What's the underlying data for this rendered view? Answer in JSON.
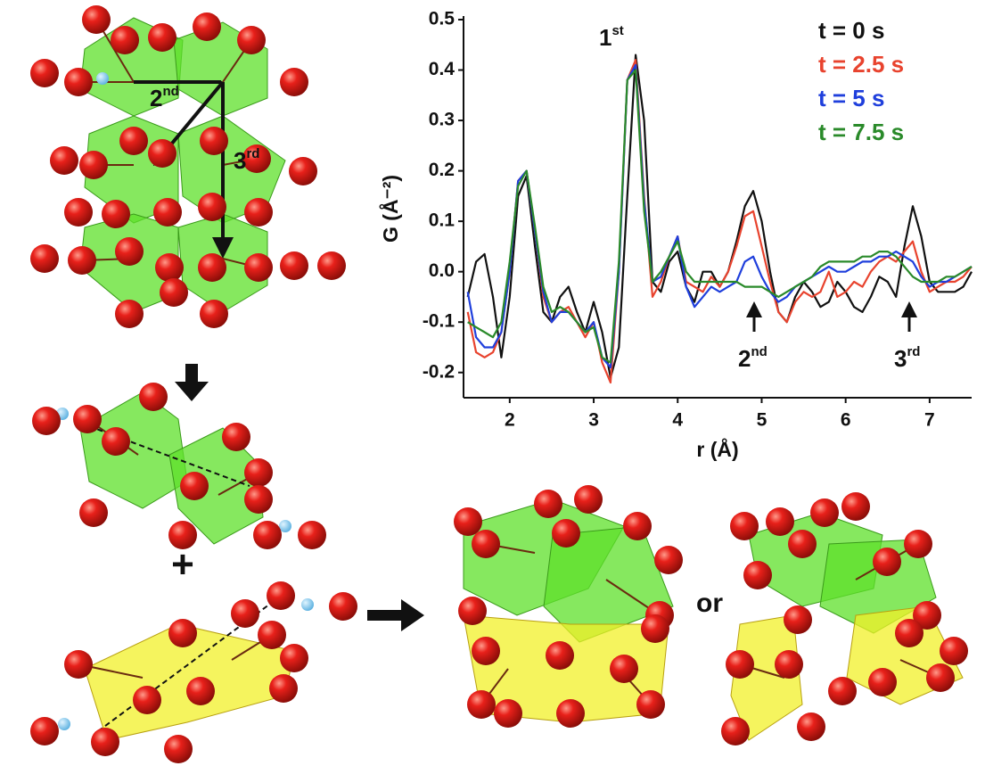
{
  "chart_data": {
    "type": "line",
    "x_label": "r (Å)",
    "y_label": "G (Å⁻²)",
    "xlim": [
      1.45,
      7.5
    ],
    "xticks": [
      2,
      3,
      4,
      5,
      6,
      7
    ],
    "ylim": [
      -0.25,
      0.5
    ],
    "yticks": [
      -0.2,
      -0.1,
      {
        "value": 0,
        "label": "0.0"
      },
      0.1,
      0.2,
      0.3,
      0.4,
      0.5
    ],
    "legend": "upper right",
    "x": [
      1.5,
      1.6,
      1.7,
      1.8,
      1.9,
      2.0,
      2.1,
      2.2,
      2.3,
      2.4,
      2.5,
      2.6,
      2.7,
      2.8,
      2.9,
      3.0,
      3.1,
      3.2,
      3.3,
      3.4,
      3.5,
      3.6,
      3.7,
      3.8,
      3.9,
      4.0,
      4.1,
      4.2,
      4.3,
      4.4,
      4.5,
      4.6,
      4.7,
      4.8,
      4.9,
      5.0,
      5.1,
      5.2,
      5.3,
      5.4,
      5.5,
      5.6,
      5.7,
      5.8,
      5.9,
      6.0,
      6.1,
      6.2,
      6.3,
      6.4,
      6.5,
      6.6,
      6.7,
      6.8,
      6.9,
      7.0,
      7.1,
      7.2,
      7.3,
      7.4,
      7.5
    ],
    "series": [
      {
        "name": "t = 0 s",
        "color": "#111111",
        "values": [
          -0.05,
          0.02,
          0.035,
          -0.05,
          -0.17,
          -0.05,
          0.15,
          0.19,
          0.05,
          -0.08,
          -0.1,
          -0.05,
          -0.03,
          -0.08,
          -0.12,
          -0.06,
          -0.12,
          -0.21,
          -0.15,
          0.15,
          0.43,
          0.3,
          -0.02,
          -0.04,
          0.02,
          0.04,
          -0.03,
          -0.06,
          0.0,
          0.0,
          -0.03,
          0.0,
          0.06,
          0.13,
          0.16,
          0.1,
          0.0,
          -0.08,
          -0.1,
          -0.05,
          -0.02,
          -0.04,
          -0.07,
          -0.06,
          -0.02,
          -0.04,
          -0.07,
          -0.08,
          -0.05,
          -0.01,
          -0.02,
          -0.05,
          0.05,
          0.13,
          0.07,
          -0.02,
          -0.04,
          -0.04,
          -0.04,
          -0.03,
          0.0
        ]
      },
      {
        "name": "t = 2.5 s",
        "color": "#e8432e",
        "values": [
          -0.08,
          -0.16,
          -0.17,
          -0.16,
          -0.12,
          0.0,
          0.18,
          0.2,
          0.08,
          -0.05,
          -0.1,
          -0.08,
          -0.07,
          -0.1,
          -0.13,
          -0.1,
          -0.18,
          -0.22,
          0.0,
          0.38,
          0.42,
          0.15,
          -0.05,
          -0.02,
          0.03,
          0.07,
          -0.02,
          -0.03,
          -0.04,
          -0.01,
          -0.03,
          0.0,
          0.05,
          0.11,
          0.12,
          0.05,
          -0.02,
          -0.08,
          -0.1,
          -0.06,
          -0.04,
          -0.05,
          -0.04,
          0.0,
          -0.05,
          -0.04,
          -0.02,
          -0.03,
          0.0,
          0.02,
          0.03,
          0.02,
          0.04,
          0.06,
          0.0,
          -0.04,
          -0.03,
          -0.02,
          -0.02,
          -0.01,
          0.01
        ]
      },
      {
        "name": "t = 5 s",
        "color": "#1f3fdc",
        "values": [
          -0.04,
          -0.13,
          -0.15,
          -0.15,
          -0.12,
          0.0,
          0.18,
          0.2,
          0.08,
          -0.04,
          -0.1,
          -0.08,
          -0.08,
          -0.1,
          -0.12,
          -0.1,
          -0.17,
          -0.19,
          0.0,
          0.38,
          0.41,
          0.14,
          -0.02,
          -0.01,
          0.03,
          0.07,
          -0.03,
          -0.07,
          -0.05,
          -0.03,
          -0.04,
          -0.03,
          -0.02,
          0.02,
          0.03,
          -0.01,
          -0.04,
          -0.06,
          -0.05,
          -0.03,
          -0.02,
          -0.01,
          0.0,
          0.01,
          0.0,
          0.0,
          0.01,
          0.02,
          0.02,
          0.03,
          0.03,
          0.04,
          0.03,
          0.02,
          -0.01,
          -0.03,
          -0.02,
          -0.02,
          -0.01,
          0.0,
          0.01
        ]
      },
      {
        "name": "t = 7.5 s",
        "color": "#2a8a2a",
        "values": [
          -0.1,
          -0.11,
          -0.12,
          -0.13,
          -0.1,
          0.02,
          0.17,
          0.2,
          0.09,
          -0.03,
          -0.08,
          -0.07,
          -0.08,
          -0.1,
          -0.12,
          -0.11,
          -0.17,
          -0.18,
          0.02,
          0.38,
          0.4,
          0.12,
          -0.02,
          0.0,
          0.03,
          0.06,
          0.0,
          -0.02,
          -0.02,
          -0.02,
          -0.02,
          -0.02,
          -0.02,
          -0.03,
          -0.03,
          -0.03,
          -0.04,
          -0.05,
          -0.04,
          -0.03,
          -0.02,
          -0.01,
          0.01,
          0.02,
          0.02,
          0.02,
          0.02,
          0.03,
          0.03,
          0.04,
          0.04,
          0.03,
          0.01,
          -0.01,
          -0.02,
          -0.02,
          -0.02,
          -0.01,
          -0.01,
          0.0,
          0.01
        ]
      }
    ],
    "annotations": [
      {
        "text": "1",
        "sup": "st"
      },
      {
        "text": "2",
        "sup": "nd"
      },
      {
        "text": "3",
        "sup": "rd"
      }
    ]
  },
  "diagram": {
    "labels": [
      {
        "text": "2",
        "sup": "nd"
      },
      {
        "text": "3",
        "sup": "rd"
      }
    ],
    "plus": "+",
    "or": "or"
  }
}
